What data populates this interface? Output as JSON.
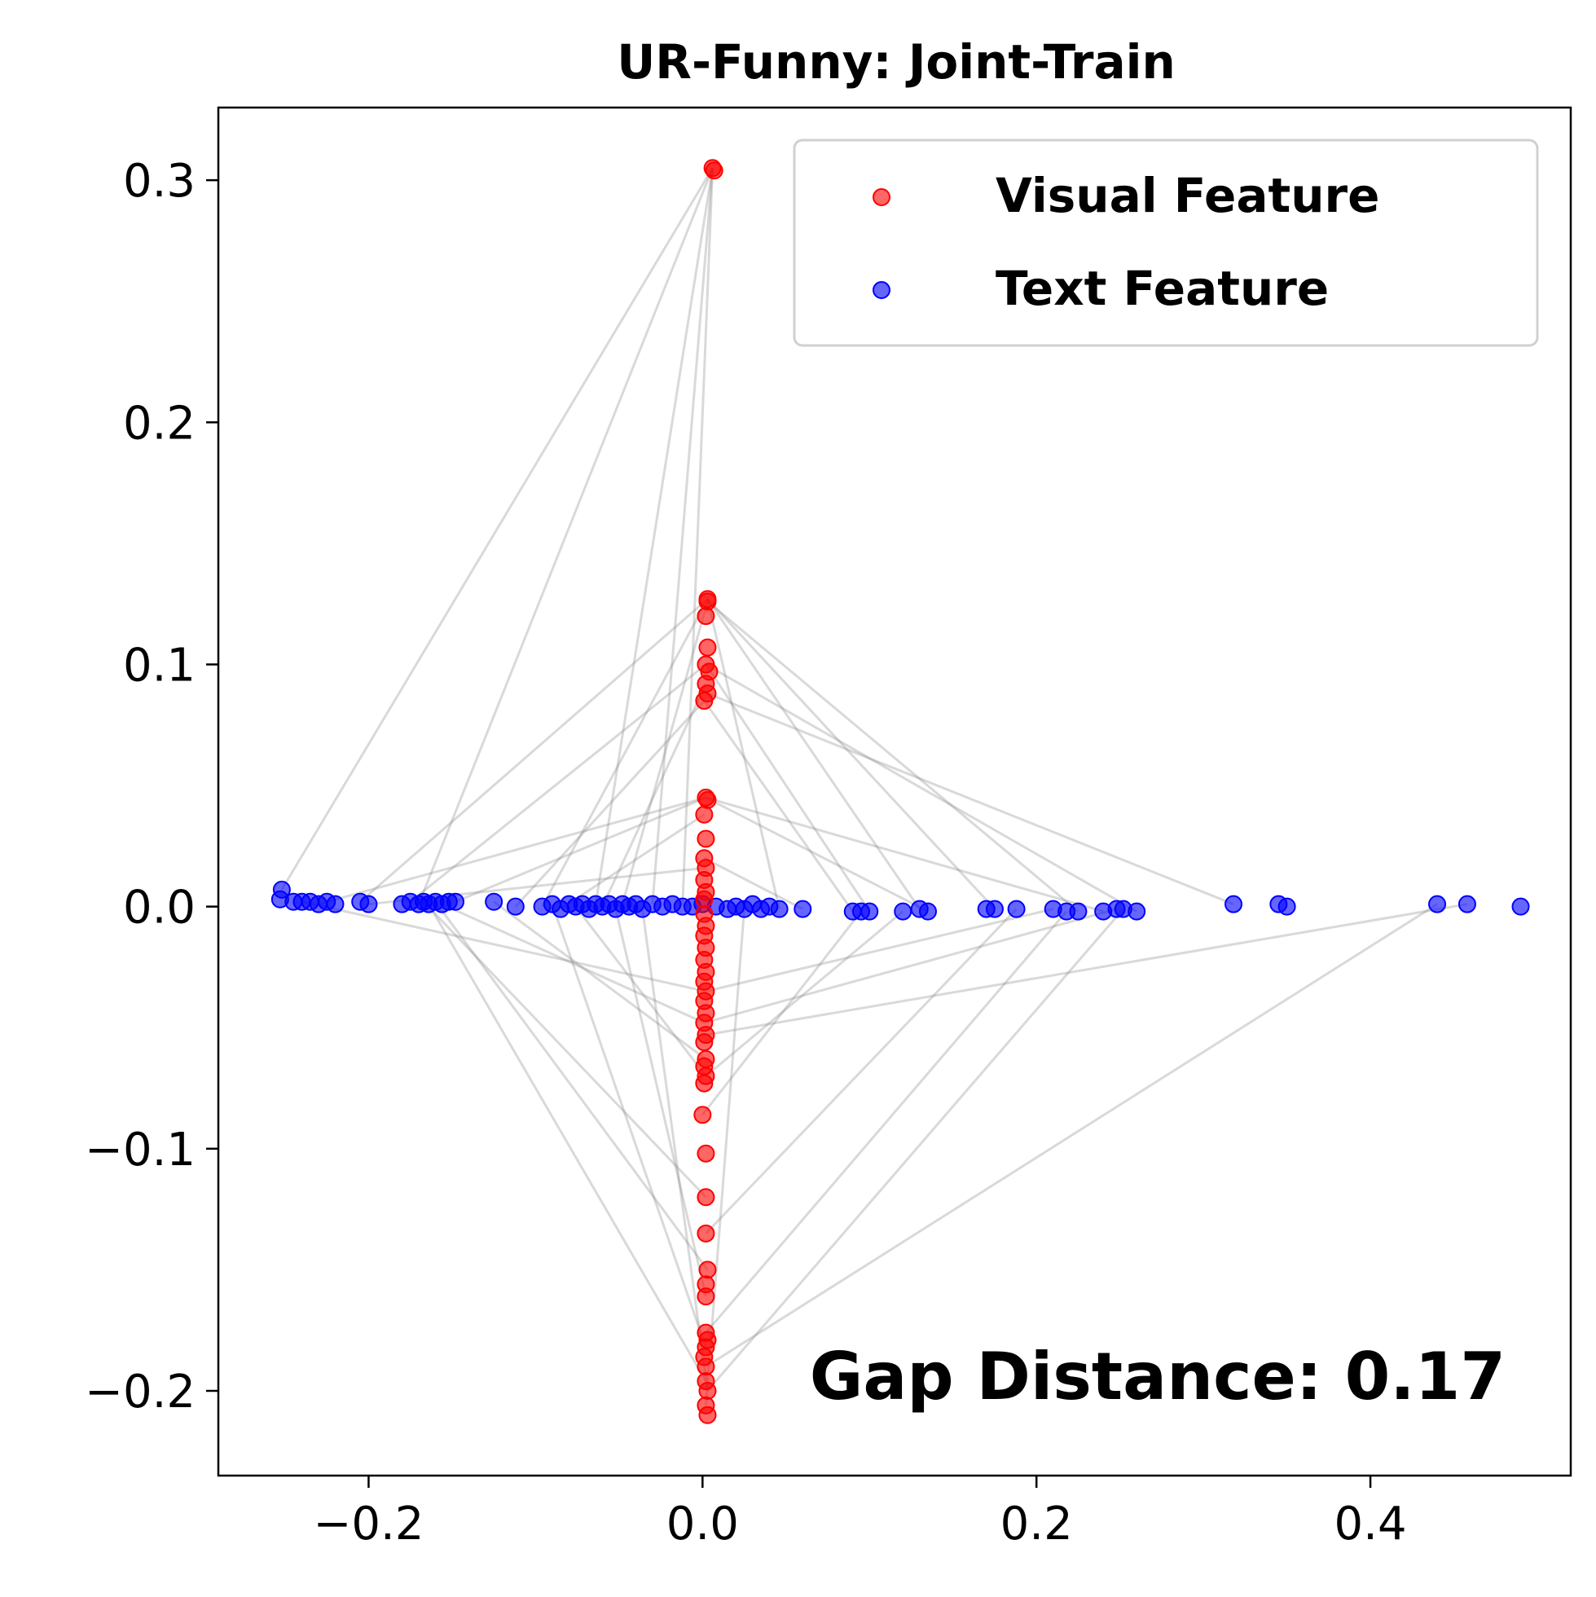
{
  "chart_data": {
    "type": "scatter",
    "title": "UR-Funny: Joint-Train",
    "xlabel": "",
    "ylabel": "",
    "xlim": [
      -0.29,
      0.52
    ],
    "ylim": [
      -0.235,
      0.33
    ],
    "xticks": [
      -0.2,
      0.0,
      0.2,
      0.4
    ],
    "xtick_labels": [
      "−0.2",
      "0.0",
      "0.2",
      "0.4"
    ],
    "yticks": [
      -0.2,
      -0.1,
      0.0,
      0.1,
      0.2,
      0.3
    ],
    "ytick_labels": [
      "−0.2",
      "−0.1",
      "0.0",
      "0.1",
      "0.2",
      "0.3"
    ],
    "grid": false,
    "legend": {
      "placement": "top-right",
      "entries": [
        "Visual Feature",
        "Text Feature"
      ]
    },
    "annotation": "Gap Distance: 0.17",
    "series": [
      {
        "name": "Visual Feature",
        "color": "#ff0000",
        "points": [
          [
            0.007,
            0.304
          ],
          [
            0.006,
            0.305
          ],
          [
            0.003,
            0.127
          ],
          [
            0.003,
            0.126
          ],
          [
            0.002,
            0.12
          ],
          [
            0.003,
            0.107
          ],
          [
            0.002,
            0.1
          ],
          [
            0.004,
            0.097
          ],
          [
            0.002,
            0.092
          ],
          [
            0.003,
            0.088
          ],
          [
            0.001,
            0.085
          ],
          [
            0.002,
            0.045
          ],
          [
            0.003,
            0.044
          ],
          [
            0.001,
            0.038
          ],
          [
            0.002,
            0.028
          ],
          [
            0.001,
            0.02
          ],
          [
            0.002,
            0.016
          ],
          [
            0.001,
            0.011
          ],
          [
            0.002,
            0.006
          ],
          [
            0.001,
            0.003
          ],
          [
            0.001,
            -0.003
          ],
          [
            0.002,
            -0.008
          ],
          [
            0.001,
            -0.012
          ],
          [
            0.002,
            -0.017
          ],
          [
            0.001,
            -0.022
          ],
          [
            0.002,
            -0.027
          ],
          [
            0.001,
            -0.031
          ],
          [
            0.002,
            -0.035
          ],
          [
            0.001,
            -0.039
          ],
          [
            0.002,
            -0.044
          ],
          [
            0.001,
            -0.048
          ],
          [
            0.002,
            -0.053
          ],
          [
            0.001,
            -0.056
          ],
          [
            0.002,
            -0.063
          ],
          [
            0.001,
            -0.066
          ],
          [
            0.002,
            -0.07
          ],
          [
            0.001,
            -0.073
          ],
          [
            0.0,
            -0.086
          ],
          [
            0.002,
            -0.102
          ],
          [
            0.002,
            -0.12
          ],
          [
            0.002,
            -0.135
          ],
          [
            0.003,
            -0.15
          ],
          [
            0.002,
            -0.156
          ],
          [
            0.002,
            -0.161
          ],
          [
            0.002,
            -0.176
          ],
          [
            0.003,
            -0.179
          ],
          [
            0.002,
            -0.182
          ],
          [
            0.001,
            -0.186
          ],
          [
            0.002,
            -0.19
          ],
          [
            0.002,
            -0.196
          ],
          [
            0.003,
            -0.2
          ],
          [
            0.002,
            -0.206
          ],
          [
            0.003,
            -0.21
          ]
        ]
      },
      {
        "name": "Text Feature",
        "color": "#0000ff",
        "points": [
          [
            -0.252,
            0.007
          ],
          [
            -0.253,
            0.003
          ],
          [
            -0.245,
            0.002
          ],
          [
            -0.24,
            0.002
          ],
          [
            -0.235,
            0.002
          ],
          [
            -0.23,
            0.001
          ],
          [
            -0.225,
            0.002
          ],
          [
            -0.22,
            0.001
          ],
          [
            -0.205,
            0.002
          ],
          [
            -0.2,
            0.001
          ],
          [
            -0.18,
            0.001
          ],
          [
            -0.175,
            0.002
          ],
          [
            -0.17,
            0.001
          ],
          [
            -0.167,
            0.002
          ],
          [
            -0.164,
            0.001
          ],
          [
            -0.16,
            0.002
          ],
          [
            -0.156,
            0.001
          ],
          [
            -0.152,
            0.002
          ],
          [
            -0.148,
            0.002
          ],
          [
            -0.125,
            0.002
          ],
          [
            -0.112,
            0.0
          ],
          [
            -0.096,
            0.0
          ],
          [
            -0.09,
            0.001
          ],
          [
            -0.085,
            -0.001
          ],
          [
            -0.08,
            0.001
          ],
          [
            -0.076,
            0.0
          ],
          [
            -0.072,
            0.001
          ],
          [
            -0.068,
            -0.001
          ],
          [
            -0.064,
            0.001
          ],
          [
            -0.06,
            0.0
          ],
          [
            -0.056,
            0.001
          ],
          [
            -0.052,
            -0.001
          ],
          [
            -0.048,
            0.001
          ],
          [
            -0.044,
            0.0
          ],
          [
            -0.04,
            0.001
          ],
          [
            -0.036,
            -0.001
          ],
          [
            -0.03,
            0.001
          ],
          [
            -0.024,
            0.0
          ],
          [
            -0.018,
            0.001
          ],
          [
            -0.012,
            0.0
          ],
          [
            -0.006,
            0.0
          ],
          [
            0.0,
            0.001
          ],
          [
            0.008,
            0.0
          ],
          [
            0.015,
            -0.001
          ],
          [
            0.02,
            0.0
          ],
          [
            0.025,
            -0.001
          ],
          [
            0.03,
            0.001
          ],
          [
            0.035,
            -0.001
          ],
          [
            0.04,
            0.0
          ],
          [
            0.046,
            -0.001
          ],
          [
            0.06,
            -0.001
          ],
          [
            0.09,
            -0.002
          ],
          [
            0.095,
            -0.002
          ],
          [
            0.1,
            -0.002
          ],
          [
            0.12,
            -0.002
          ],
          [
            0.13,
            -0.001
          ],
          [
            0.135,
            -0.002
          ],
          [
            0.17,
            -0.001
          ],
          [
            0.175,
            -0.001
          ],
          [
            0.188,
            -0.001
          ],
          [
            0.21,
            -0.001
          ],
          [
            0.218,
            -0.002
          ],
          [
            0.225,
            -0.002
          ],
          [
            0.24,
            -0.002
          ],
          [
            0.248,
            -0.001
          ],
          [
            0.252,
            -0.001
          ],
          [
            0.26,
            -0.002
          ],
          [
            0.318,
            0.001
          ],
          [
            0.345,
            0.001
          ],
          [
            0.35,
            0.0
          ],
          [
            0.44,
            0.001
          ],
          [
            0.458,
            0.001
          ],
          [
            0.49,
            0.0
          ]
        ]
      }
    ],
    "connecting_lines": {
      "color": "#808080",
      "description": "faint gray segments linking visual features to text features",
      "pairs": [
        [
          [
            0.006,
            0.305
          ],
          [
            -0.252,
            0.007
          ]
        ],
        [
          [
            0.006,
            0.305
          ],
          [
            -0.17,
            0.001
          ]
        ],
        [
          [
            0.006,
            0.305
          ],
          [
            -0.064,
            0.001
          ]
        ],
        [
          [
            0.006,
            0.305
          ],
          [
            -0.03,
            0.001
          ]
        ],
        [
          [
            0.006,
            0.305
          ],
          [
            -0.012,
            0.0
          ]
        ],
        [
          [
            0.003,
            0.127
          ],
          [
            -0.205,
            0.002
          ]
        ],
        [
          [
            0.003,
            0.127
          ],
          [
            -0.096,
            0.0
          ]
        ],
        [
          [
            0.003,
            0.127
          ],
          [
            0.046,
            -0.001
          ]
        ],
        [
          [
            0.003,
            0.127
          ],
          [
            0.13,
            -0.001
          ]
        ],
        [
          [
            0.003,
            0.127
          ],
          [
            0.175,
            -0.001
          ]
        ],
        [
          [
            0.003,
            0.126
          ],
          [
            0.225,
            -0.002
          ]
        ],
        [
          [
            0.003,
            0.126
          ],
          [
            -0.048,
            0.001
          ]
        ],
        [
          [
            0.002,
            0.1
          ],
          [
            -0.175,
            0.002
          ]
        ],
        [
          [
            0.002,
            0.1
          ],
          [
            0.1,
            -0.002
          ]
        ],
        [
          [
            0.002,
            0.1
          ],
          [
            0.26,
            -0.002
          ]
        ],
        [
          [
            0.001,
            0.085
          ],
          [
            -0.112,
            0.0
          ]
        ],
        [
          [
            0.001,
            0.085
          ],
          [
            0.09,
            -0.002
          ]
        ],
        [
          [
            0.003,
            0.088
          ],
          [
            0.318,
            0.001
          ]
        ],
        [
          [
            0.002,
            0.092
          ],
          [
            -0.06,
            0.0
          ]
        ],
        [
          [
            0.002,
            0.045
          ],
          [
            -0.23,
            0.001
          ]
        ],
        [
          [
            0.002,
            0.045
          ],
          [
            -0.148,
            0.002
          ]
        ],
        [
          [
            0.002,
            0.045
          ],
          [
            0.135,
            -0.002
          ]
        ],
        [
          [
            0.002,
            0.045
          ],
          [
            0.24,
            -0.002
          ]
        ],
        [
          [
            0.001,
            0.038
          ],
          [
            -0.085,
            -0.001
          ]
        ],
        [
          [
            0.001,
            0.02
          ],
          [
            0.06,
            -0.001
          ]
        ],
        [
          [
            0.002,
            0.016
          ],
          [
            -0.2,
            0.001
          ]
        ],
        [
          [
            0.002,
            -0.035
          ],
          [
            -0.24,
            0.002
          ]
        ],
        [
          [
            0.002,
            -0.035
          ],
          [
            0.21,
            -0.001
          ]
        ],
        [
          [
            0.001,
            -0.048
          ],
          [
            -0.156,
            0.001
          ]
        ],
        [
          [
            0.001,
            -0.048
          ],
          [
            0.248,
            -0.001
          ]
        ],
        [
          [
            0.002,
            -0.053
          ],
          [
            0.458,
            0.001
          ]
        ],
        [
          [
            0.002,
            -0.063
          ],
          [
            -0.125,
            0.002
          ]
        ],
        [
          [
            0.002,
            -0.07
          ],
          [
            0.12,
            -0.002
          ]
        ],
        [
          [
            0.002,
            -0.07
          ],
          [
            -0.076,
            0.0
          ]
        ],
        [
          [
            0.0,
            -0.086
          ],
          [
            0.095,
            -0.002
          ]
        ],
        [
          [
            0.002,
            -0.12
          ],
          [
            -0.167,
            0.002
          ]
        ],
        [
          [
            0.002,
            -0.135
          ],
          [
            0.188,
            -0.001
          ]
        ],
        [
          [
            0.003,
            -0.15
          ],
          [
            -0.16,
            0.002
          ]
        ],
        [
          [
            0.002,
            -0.161
          ],
          [
            -0.052,
            -0.001
          ]
        ],
        [
          [
            0.002,
            -0.176
          ],
          [
            0.218,
            -0.002
          ]
        ],
        [
          [
            0.002,
            -0.182
          ],
          [
            -0.09,
            0.001
          ]
        ],
        [
          [
            0.002,
            -0.19
          ],
          [
            0.44,
            0.001
          ]
        ],
        [
          [
            0.002,
            -0.196
          ],
          [
            -0.164,
            0.001
          ]
        ],
        [
          [
            0.003,
            -0.2
          ],
          [
            0.252,
            -0.001
          ]
        ],
        [
          [
            0.003,
            -0.2
          ],
          [
            -0.036,
            -0.001
          ]
        ],
        [
          [
            0.002,
            -0.206
          ],
          [
            0.025,
            -0.001
          ]
        ]
      ]
    }
  }
}
